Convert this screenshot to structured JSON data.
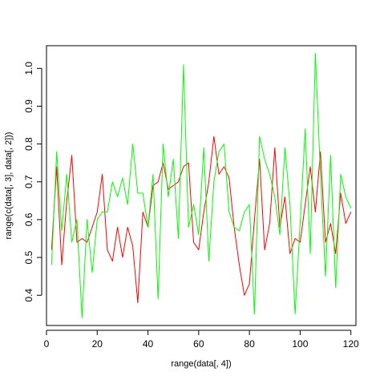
{
  "chart_data": {
    "type": "line",
    "title": "",
    "xlabel": "range(data[, 4])",
    "ylabel": "range(c(data[, 3], data[, 2]))",
    "xlim": [
      0,
      122
    ],
    "ylim": [
      0.32,
      1.06
    ],
    "xticks": [
      0,
      20,
      40,
      60,
      80,
      100,
      120
    ],
    "xtick_labels": [
      "0",
      "20",
      "40",
      "60",
      "80",
      "100",
      "120"
    ],
    "yticks": [
      0.4,
      0.5,
      0.6,
      0.7,
      0.8,
      0.9,
      1.0
    ],
    "ytick_labels": [
      "0.4",
      "0.5",
      "0.6",
      "0.7",
      "0.8",
      "0.9",
      "1.0"
    ],
    "grid": false,
    "legend": "none",
    "x": [
      2,
      4,
      6,
      8,
      10,
      12,
      14,
      16,
      18,
      20,
      22,
      24,
      26,
      28,
      30,
      32,
      34,
      36,
      38,
      40,
      42,
      44,
      46,
      48,
      50,
      52,
      54,
      56,
      58,
      60,
      62,
      64,
      66,
      68,
      70,
      72,
      74,
      76,
      78,
      80,
      82,
      84,
      86,
      88,
      90,
      92,
      94,
      96,
      98,
      100,
      102,
      104,
      106,
      108,
      110,
      112,
      114,
      116,
      118,
      120
    ],
    "series": [
      {
        "color": "#FF0000",
        "values": [
          0.52,
          0.74,
          0.48,
          0.65,
          0.77,
          0.54,
          0.55,
          0.54,
          0.58,
          0.62,
          0.72,
          0.52,
          0.49,
          0.58,
          0.5,
          0.58,
          0.53,
          0.38,
          0.62,
          0.58,
          0.69,
          0.7,
          0.75,
          0.68,
          0.69,
          0.7,
          0.74,
          0.75,
          0.54,
          0.52,
          0.62,
          0.7,
          0.82,
          0.72,
          0.74,
          0.71,
          0.58,
          0.48,
          0.4,
          0.43,
          0.6,
          0.76,
          0.52,
          0.59,
          0.79,
          0.58,
          0.66,
          0.51,
          0.55,
          0.54,
          0.64,
          0.74,
          0.62,
          0.78,
          0.54,
          0.59,
          0.51,
          0.67,
          0.59,
          0.62
        ]
      },
      {
        "color": "#00FF00",
        "values": [
          0.48,
          0.78,
          0.57,
          0.72,
          0.54,
          0.6,
          0.34,
          0.6,
          0.46,
          0.6,
          0.62,
          0.62,
          0.7,
          0.66,
          0.71,
          0.64,
          0.8,
          0.67,
          0.67,
          0.58,
          0.72,
          0.39,
          0.8,
          0.66,
          0.76,
          0.55,
          1.01,
          0.58,
          0.64,
          0.56,
          0.79,
          0.49,
          0.7,
          0.78,
          0.8,
          0.62,
          0.58,
          0.57,
          0.62,
          0.64,
          0.35,
          0.82,
          0.76,
          0.72,
          0.66,
          0.56,
          0.79,
          0.64,
          0.35,
          0.59,
          0.84,
          0.51,
          1.04,
          0.72,
          0.45,
          0.77,
          0.42,
          0.72,
          0.66,
          0.63
        ]
      }
    ]
  }
}
